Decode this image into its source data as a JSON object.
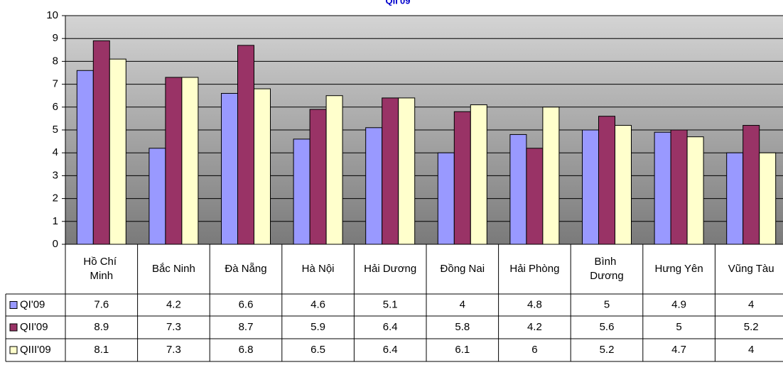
{
  "chart_data": {
    "type": "bar",
    "title": "QII'09",
    "categories": [
      "Hồ Chí Minh",
      "Bắc Ninh",
      "Đà Nẵng",
      "Hà Nội",
      "Hải Dương",
      "Đồng Nai",
      "Hải Phòng",
      "Bình Dương",
      "Hưng Yên",
      "Vũng Tàu"
    ],
    "series": [
      {
        "name": "QI'09",
        "color": "#9999ff",
        "values": [
          7.6,
          4.2,
          6.6,
          4.6,
          5.1,
          4,
          4.8,
          5,
          4.9,
          4
        ]
      },
      {
        "name": "QII'09",
        "color": "#993366",
        "values": [
          8.9,
          7.3,
          8.7,
          5.9,
          6.4,
          5.8,
          4.2,
          5.6,
          5,
          5.2
        ]
      },
      {
        "name": "QIII'09",
        "color": "#ffffcc",
        "values": [
          8.1,
          7.3,
          6.8,
          6.5,
          6.4,
          6.1,
          6,
          5.2,
          4.7,
          4
        ]
      }
    ],
    "ylim": [
      0,
      10
    ],
    "yticks": [
      0,
      1,
      2,
      3,
      4,
      5,
      6,
      7,
      8,
      9,
      10
    ],
    "grid": true,
    "data_table": true
  }
}
